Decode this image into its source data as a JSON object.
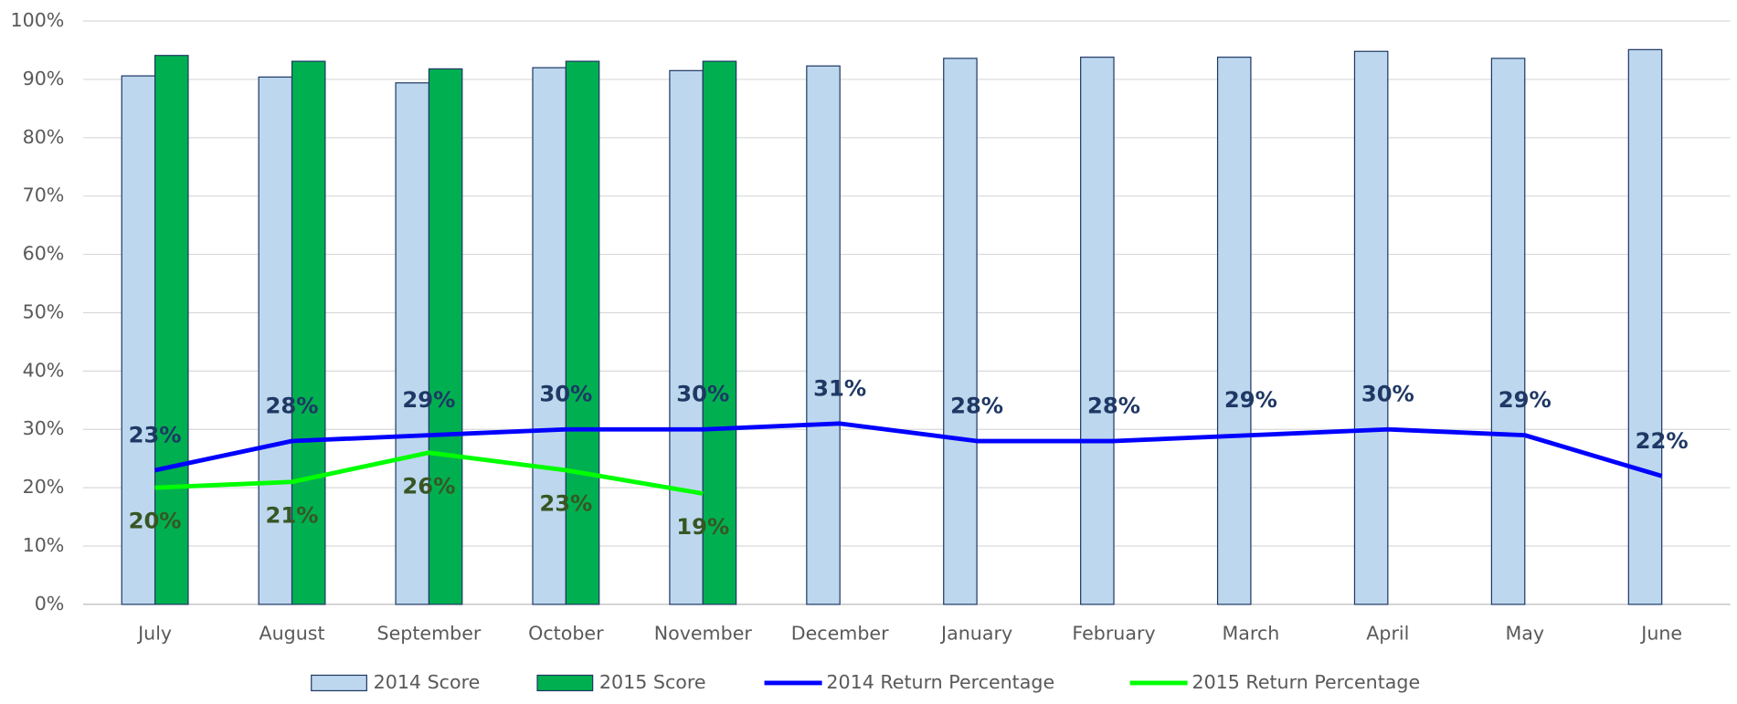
{
  "chart_data": {
    "type": "bar_line",
    "categories": [
      "July",
      "August",
      "September",
      "October",
      "November",
      "December",
      "January",
      "February",
      "March",
      "April",
      "May",
      "June"
    ],
    "series": [
      {
        "name": "2014 Score",
        "type": "bar",
        "color": "#bdd7ee",
        "values": [
          90.6,
          90.4,
          89.4,
          92.0,
          91.5,
          92.3,
          93.6,
          93.8,
          93.8,
          94.8,
          93.6,
          95.1
        ]
      },
      {
        "name": "2015 Score",
        "type": "bar",
        "color": "#00b050",
        "values": [
          94.1,
          93.1,
          91.8,
          93.1,
          93.1,
          null,
          null,
          null,
          null,
          null,
          null,
          null
        ]
      },
      {
        "name": "2014 Return Percentage",
        "type": "line",
        "color": "#0000ff",
        "label_color": "#1f3864",
        "label_position": "above",
        "values": [
          23,
          28,
          29,
          30,
          30,
          31,
          28,
          28,
          29,
          30,
          29,
          22
        ],
        "value_labels": [
          "23%",
          "28%",
          "29%",
          "30%",
          "30%",
          "31%",
          "28%",
          "28%",
          "29%",
          "30%",
          "29%",
          "22%"
        ]
      },
      {
        "name": "2015 Return Percentage",
        "type": "line",
        "color": "#00ff00",
        "label_color": "#375623",
        "label_position": "below",
        "values": [
          20,
          21,
          26,
          23,
          19,
          null,
          null,
          null,
          null,
          null,
          null,
          null
        ],
        "value_labels": [
          "20%",
          "21%",
          "26%",
          "23%",
          "19%",
          null,
          null,
          null,
          null,
          null,
          null,
          null
        ]
      }
    ],
    "ylim": [
      0,
      100
    ],
    "yticks": [
      {
        "value": 0,
        "label": "0%"
      },
      {
        "value": 10,
        "label": "10%"
      },
      {
        "value": 20,
        "label": "20%"
      },
      {
        "value": 30,
        "label": "30%"
      },
      {
        "value": 40,
        "label": "40%"
      },
      {
        "value": 50,
        "label": "50%"
      },
      {
        "value": 60,
        "label": "60%"
      },
      {
        "value": 70,
        "label": "70%"
      },
      {
        "value": 80,
        "label": "80%"
      },
      {
        "value": 90,
        "label": "90%"
      },
      {
        "value": 100,
        "label": "100%"
      }
    ],
    "grid": true,
    "legend": "bottom"
  }
}
